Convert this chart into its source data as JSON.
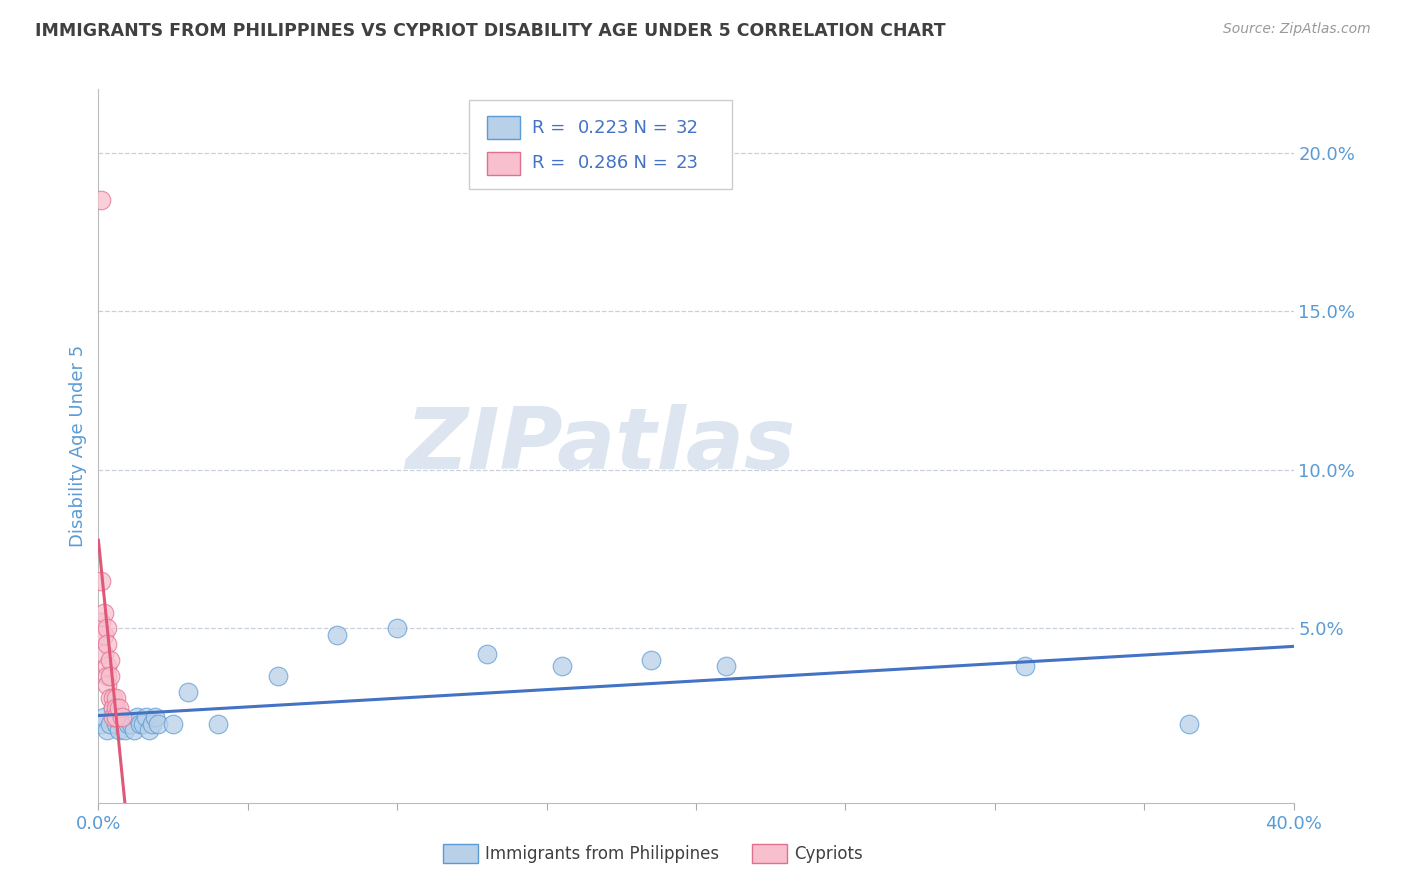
{
  "title": "IMMIGRANTS FROM PHILIPPINES VS CYPRIOT DISABILITY AGE UNDER 5 CORRELATION CHART",
  "source": "Source: ZipAtlas.com",
  "xlabel_blue": "Immigrants from Philippines",
  "xlabel_pink": "Cypriots",
  "ylabel": "Disability Age Under 5",
  "xlim": [
    0.0,
    0.4
  ],
  "ylim": [
    -0.005,
    0.22
  ],
  "R_blue": "0.223",
  "N_blue": "32",
  "R_pink": "0.286",
  "N_pink": "23",
  "blue_color": "#b8d0e8",
  "blue_edge_color": "#5b9bd5",
  "blue_line_color": "#4472c4",
  "pink_color": "#f8c0ce",
  "pink_edge_color": "#e07090",
  "pink_line_color": "#e05878",
  "blue_scatter_x": [
    0.001,
    0.002,
    0.003,
    0.004,
    0.005,
    0.006,
    0.007,
    0.008,
    0.009,
    0.01,
    0.011,
    0.012,
    0.013,
    0.014,
    0.015,
    0.016,
    0.017,
    0.018,
    0.019,
    0.02,
    0.025,
    0.03,
    0.04,
    0.06,
    0.08,
    0.1,
    0.13,
    0.155,
    0.185,
    0.21,
    0.31,
    0.365
  ],
  "blue_scatter_y": [
    0.02,
    0.022,
    0.018,
    0.02,
    0.025,
    0.02,
    0.018,
    0.022,
    0.018,
    0.02,
    0.02,
    0.018,
    0.022,
    0.02,
    0.02,
    0.022,
    0.018,
    0.02,
    0.022,
    0.02,
    0.02,
    0.03,
    0.02,
    0.035,
    0.048,
    0.05,
    0.042,
    0.038,
    0.04,
    0.038,
    0.038,
    0.02
  ],
  "pink_scatter_x": [
    0.001,
    0.001,
    0.001,
    0.001,
    0.002,
    0.002,
    0.002,
    0.003,
    0.003,
    0.003,
    0.003,
    0.003,
    0.004,
    0.004,
    0.004,
    0.005,
    0.005,
    0.005,
    0.006,
    0.006,
    0.006,
    0.007,
    0.008
  ],
  "pink_scatter_y": [
    0.185,
    0.052,
    0.048,
    0.065,
    0.055,
    0.048,
    0.042,
    0.05,
    0.045,
    0.038,
    0.035,
    0.032,
    0.04,
    0.035,
    0.028,
    0.028,
    0.025,
    0.022,
    0.028,
    0.025,
    0.022,
    0.025,
    0.022
  ],
  "watermark": "ZIPatlas",
  "watermark_color": "#dde5f0",
  "title_color": "#404040",
  "axis_color": "#5b9bd5",
  "grid_color": "#c8d0dc",
  "background_color": "#ffffff",
  "legend_text_color": "#404040",
  "legend_num_color": "#4472c4"
}
